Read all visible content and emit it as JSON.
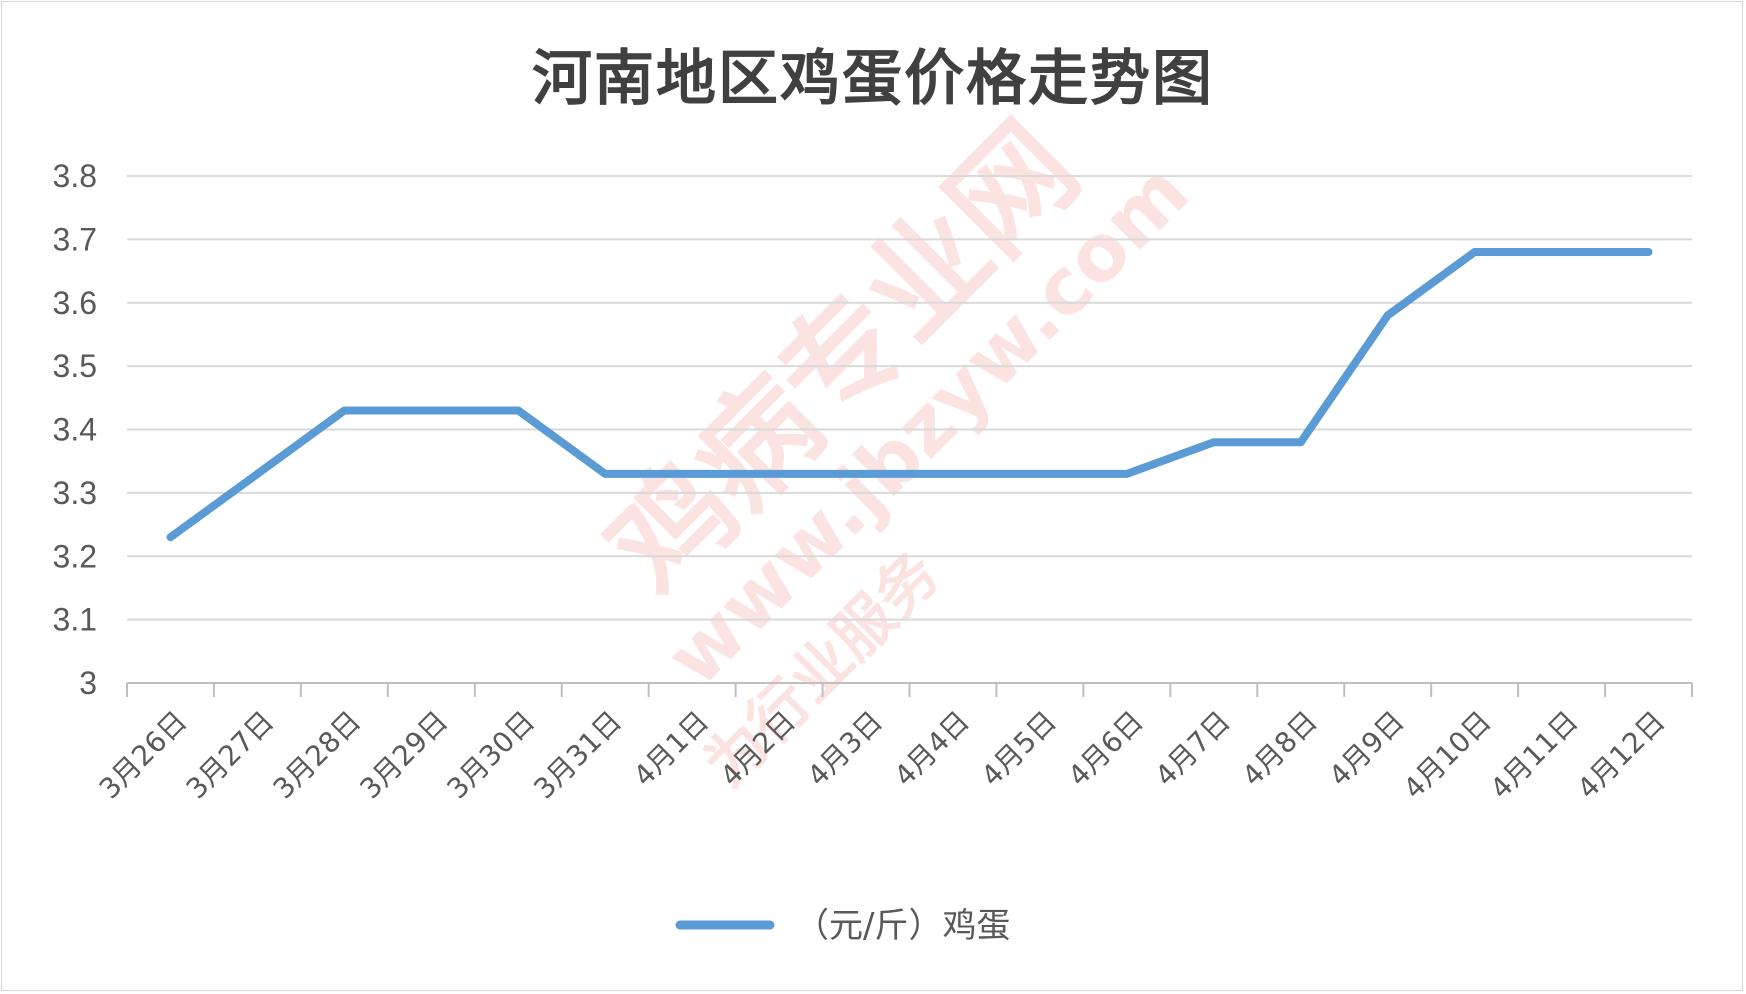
{
  "chart_data": {
    "type": "line",
    "title": "河南地区鸡蛋价格走势图",
    "categories": [
      "3月26日",
      "3月27日",
      "3月28日",
      "3月29日",
      "3月30日",
      "3月31日",
      "4月1日",
      "4月2日",
      "4月3日",
      "4月4日",
      "4月5日",
      "4月6日",
      "4月7日",
      "4月8日",
      "4月9日",
      "4月10日",
      "4月11日",
      "4月12日"
    ],
    "series": [
      {
        "name": "（元/斤）鸡蛋",
        "values": [
          3.23,
          3.33,
          3.43,
          3.43,
          3.43,
          3.33,
          3.33,
          3.33,
          3.33,
          3.33,
          3.33,
          3.33,
          3.38,
          3.38,
          3.58,
          3.68,
          3.68,
          3.68
        ]
      }
    ],
    "ylim": [
      3,
      3.8
    ],
    "yticks": [
      "3",
      "3.1",
      "3.2",
      "3.3",
      "3.4",
      "3.5",
      "3.6",
      "3.7",
      "3.8"
    ],
    "grid": true,
    "legend": "bottom",
    "line_color": "#5b9bd5"
  },
  "watermark": {
    "main": "鸡病专业网",
    "url": "www.jbzyw.com",
    "motto": "为行业服务"
  }
}
